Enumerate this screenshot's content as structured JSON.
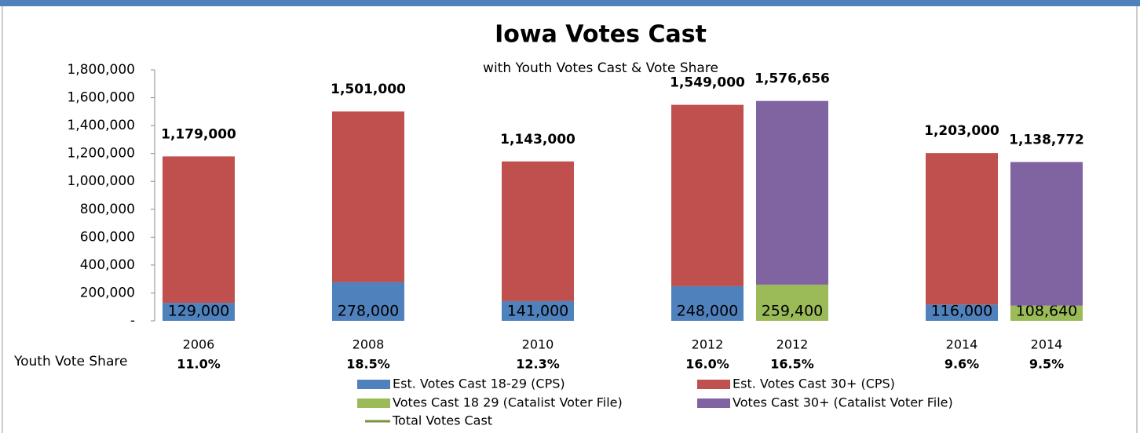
{
  "chart_data": {
    "type": "stacked_bar",
    "title": "Iowa Votes Cast",
    "subtitle": "with Youth Votes Cast & Vote Share",
    "categories": [
      "2006",
      null,
      "2008",
      null,
      "2010",
      null,
      "2012",
      "2012",
      null,
      "2014",
      "2014"
    ],
    "series": [
      {
        "name": "Est. Votes Cast 18-29 (CPS)",
        "color": "#4f81bd",
        "values": [
          129000,
          null,
          278000,
          null,
          141000,
          null,
          248000,
          null,
          null,
          116000,
          null
        ],
        "value_labels": [
          "129,000",
          null,
          "278,000",
          null,
          "141,000",
          null,
          "248,000",
          null,
          null,
          "116,000",
          null
        ]
      },
      {
        "name": "Est. Votes Cast 30+ (CPS)",
        "color": "#c0504d",
        "values": [
          1050000,
          null,
          1223000,
          null,
          1002000,
          null,
          1301000,
          null,
          null,
          1087000,
          null
        ]
      },
      {
        "name": "Votes Cast 18 29 (Catalist Voter File)",
        "color": "#9bbb59",
        "values": [
          null,
          null,
          null,
          null,
          null,
          null,
          null,
          259400,
          null,
          null,
          108640
        ],
        "value_labels": [
          null,
          null,
          null,
          null,
          null,
          null,
          null,
          "259,400",
          null,
          null,
          "108,640"
        ]
      },
      {
        "name": "Votes Cast 30+ (Catalist Voter File)",
        "color": "#8064a2",
        "values": [
          null,
          null,
          null,
          null,
          null,
          null,
          null,
          1317256,
          null,
          null,
          1030132
        ]
      },
      {
        "name": "Total Votes Cast",
        "color": "#77933c",
        "type": "line",
        "values": [
          1179000,
          null,
          1501000,
          null,
          1143000,
          null,
          1549000,
          1576656,
          null,
          1203000,
          1138772
        ],
        "value_labels": [
          "1,179,000",
          null,
          "1,501,000",
          null,
          "1,143,000",
          null,
          "1,549,000",
          "1,576,656",
          null,
          "1,203,000",
          "1,138,772"
        ]
      }
    ],
    "youth_vote_share": {
      "label": "Youth Vote Share",
      "color": "#4f81bd",
      "values": [
        11.0,
        null,
        18.5,
        null,
        12.3,
        null,
        16.0,
        16.5,
        null,
        9.6,
        9.5
      ],
      "value_labels": [
        "11.0%",
        null,
        "18.5%",
        null,
        "12.3%",
        null,
        "16.0%",
        "16.5%",
        null,
        "9.6%",
        "9.5%"
      ]
    },
    "ylim": [
      0,
      1800000
    ],
    "yticks": [
      {
        "value": 0,
        "label": "-"
      },
      {
        "value": 200000,
        "label": "200,000"
      },
      {
        "value": 400000,
        "label": "400,000"
      },
      {
        "value": 600000,
        "label": "600,000"
      },
      {
        "value": 800000,
        "label": "800,000"
      },
      {
        "value": 1000000,
        "label": "1,000,000"
      },
      {
        "value": 1200000,
        "label": "1,200,000"
      },
      {
        "value": 1400000,
        "label": "1,400,000"
      },
      {
        "value": 1600000,
        "label": "1,600,000"
      },
      {
        "value": 1800000,
        "label": "1,800,000"
      }
    ],
    "grid": false
  }
}
